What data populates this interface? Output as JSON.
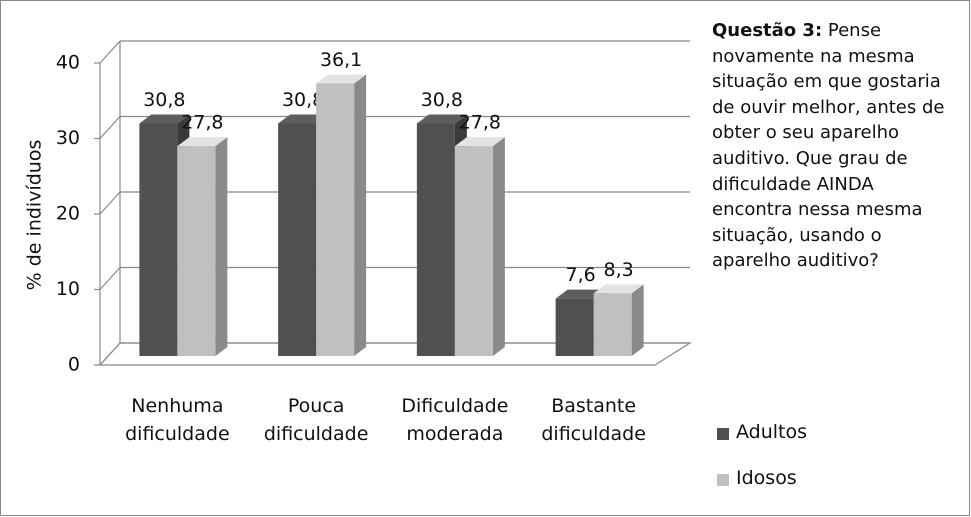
{
  "chart_data": {
    "type": "bar",
    "y_label": "% de indivíduos",
    "categories": [
      "Nenhuma dificuldade",
      "Pouca dificuldade",
      "Dificuldade moderada",
      "Bastante dificuldade"
    ],
    "series": [
      {
        "name": "Adultos",
        "color": "#505050",
        "values": [
          30.8,
          30.8,
          30.8,
          7.6
        ],
        "value_labels": [
          "30,8",
          "30,8",
          "30,8",
          "7,6"
        ]
      },
      {
        "name": "Idosos",
        "color": "#c0c0c0",
        "values": [
          27.8,
          36.1,
          27.8,
          8.3
        ],
        "value_labels": [
          "27,8",
          "36,1",
          "27,8",
          "8,3"
        ]
      }
    ],
    "ylim": [
      0,
      40
    ],
    "yticks": [
      0,
      10,
      20,
      30,
      40
    ],
    "grid": true,
    "annotation": {
      "label": "Questão 3:",
      "text": "Pense novamente na mesma situação em que gostaria de ouvir melhor, antes de obter o seu aparelho auditivo. Que grau de dificuldade AINDA encontra nessa mesma situação, usando o aparelho auditivo?"
    }
  }
}
